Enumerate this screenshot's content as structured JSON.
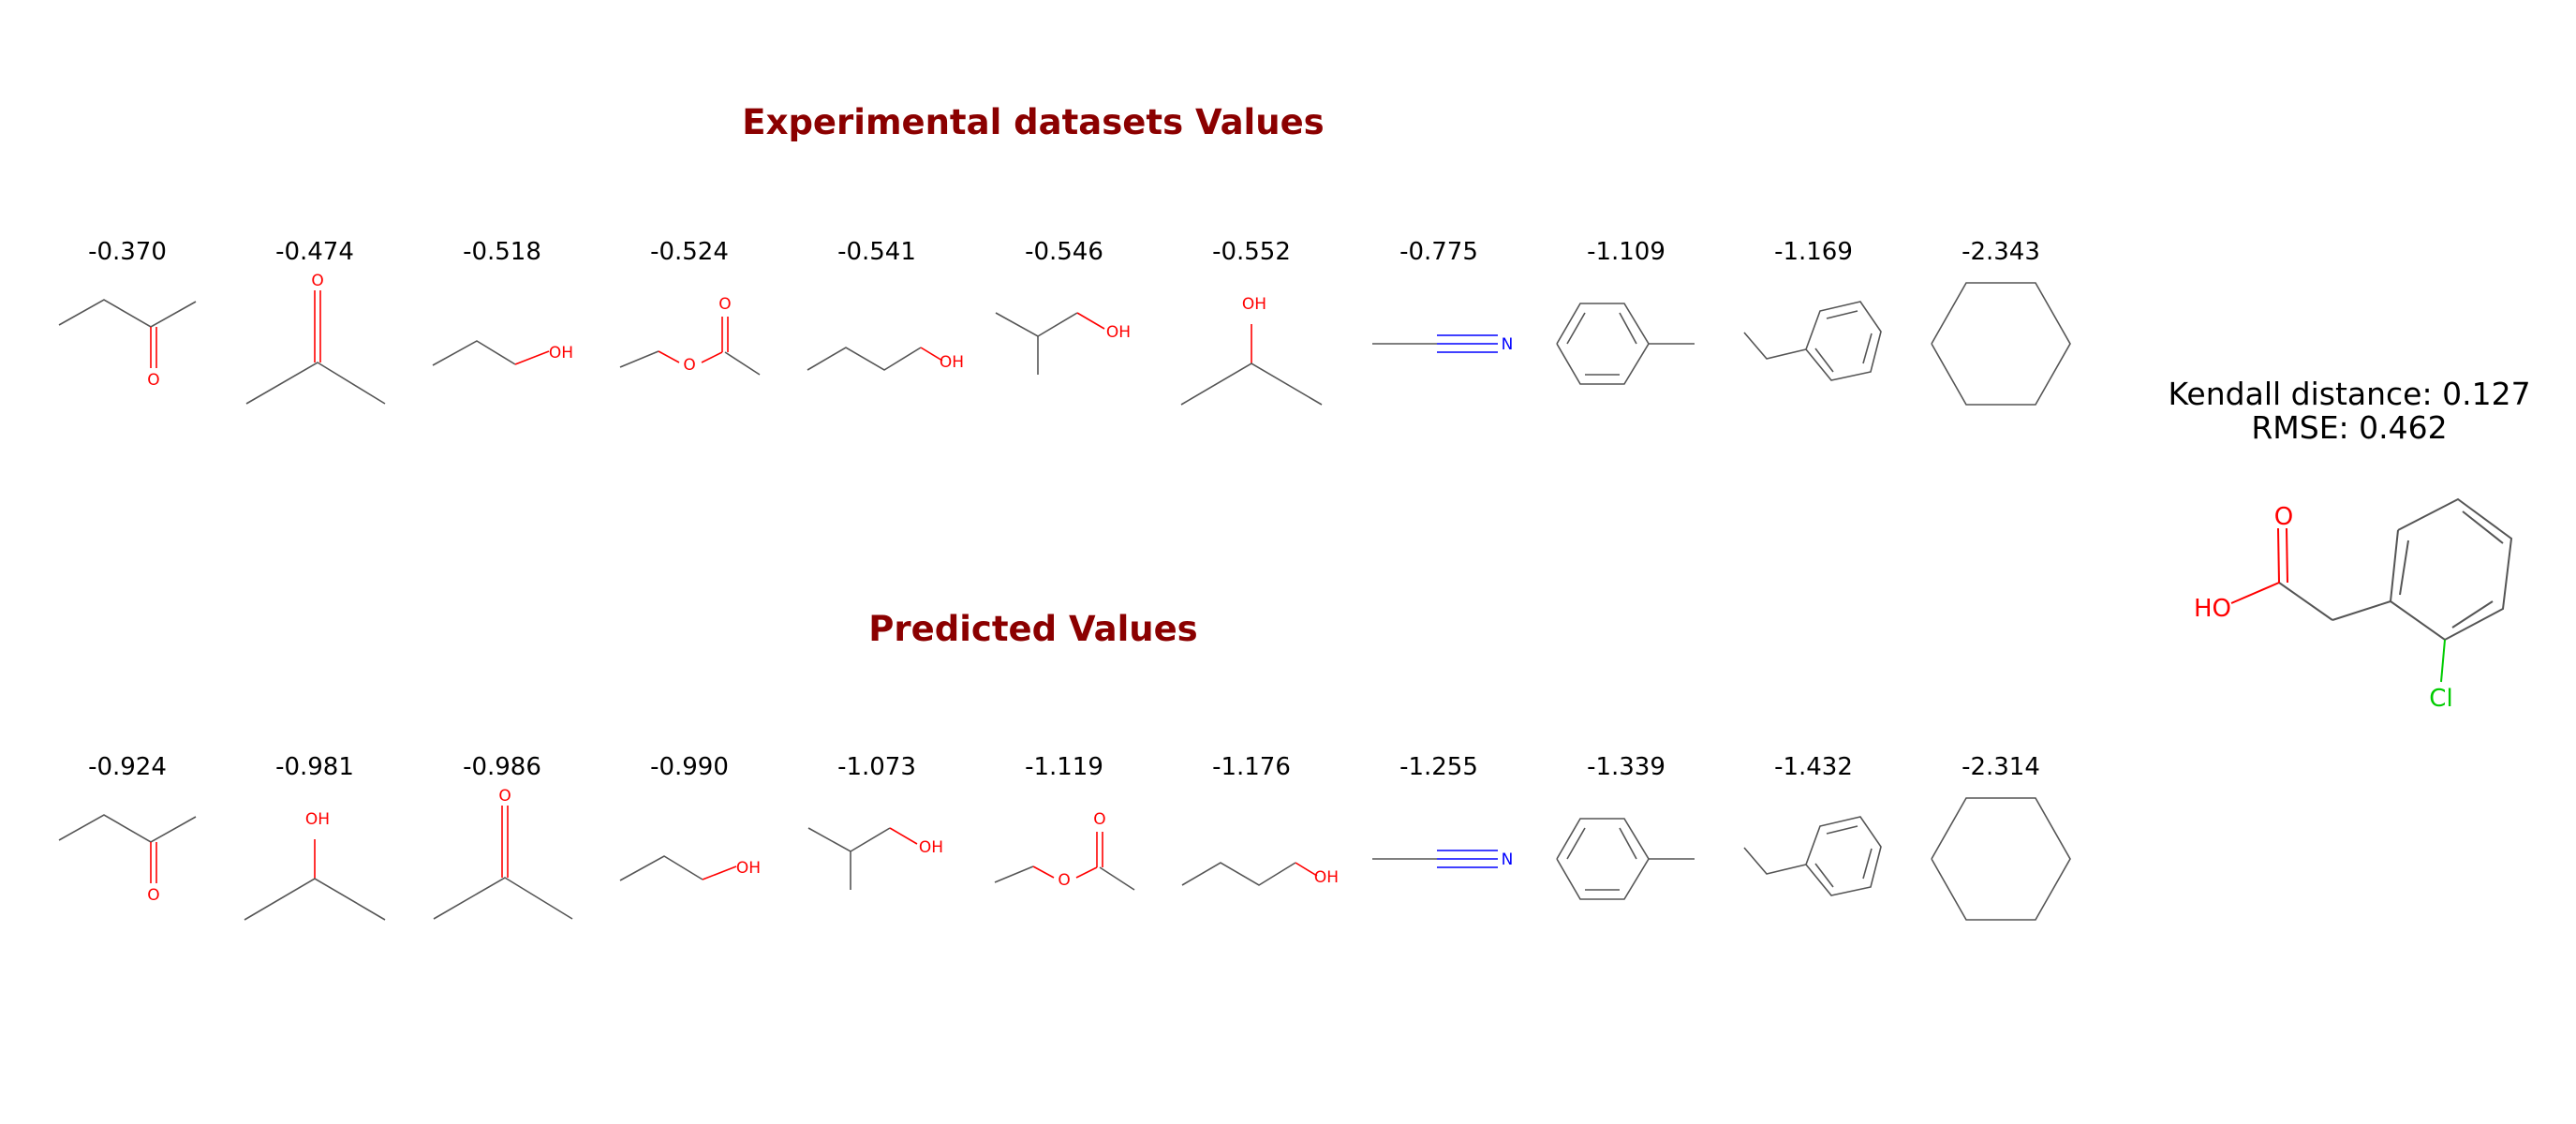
{
  "experimental": {
    "title": "Experimental datasets Values",
    "items": [
      {
        "value": "-0.370",
        "molecule": "butanone"
      },
      {
        "value": "-0.474",
        "molecule": "acetone"
      },
      {
        "value": "-0.518",
        "molecule": "propanol"
      },
      {
        "value": "-0.524",
        "molecule": "ethyl-acetate"
      },
      {
        "value": "-0.541",
        "molecule": "butanol"
      },
      {
        "value": "-0.546",
        "molecule": "isobutanol"
      },
      {
        "value": "-0.552",
        "molecule": "isopropanol"
      },
      {
        "value": "-0.775",
        "molecule": "acetonitrile"
      },
      {
        "value": "-1.109",
        "molecule": "toluene"
      },
      {
        "value": "-1.169",
        "molecule": "ethylbenzene"
      },
      {
        "value": "-2.343",
        "molecule": "cyclohexane"
      }
    ]
  },
  "predicted": {
    "title": "Predicted Values",
    "items": [
      {
        "value": "-0.924",
        "molecule": "butanone"
      },
      {
        "value": "-0.981",
        "molecule": "isopropanol"
      },
      {
        "value": "-0.986",
        "molecule": "acetone"
      },
      {
        "value": "-0.990",
        "molecule": "propanol"
      },
      {
        "value": "-1.073",
        "molecule": "isobutanol"
      },
      {
        "value": "-1.119",
        "molecule": "ethyl-acetate"
      },
      {
        "value": "-1.176",
        "molecule": "butanol"
      },
      {
        "value": "-1.255",
        "molecule": "acetonitrile"
      },
      {
        "value": "-1.339",
        "molecule": "toluene"
      },
      {
        "value": "-1.432",
        "molecule": "ethylbenzene"
      },
      {
        "value": "-2.314",
        "molecule": "cyclohexane"
      }
    ]
  },
  "metrics": {
    "kendall": "Kendall distance: 0.127",
    "rmse": "RMSE: 0.462"
  },
  "solute": {
    "molecule": "2-chlorophenylacetic-acid",
    "labels": {
      "o": "O",
      "oh": "HO",
      "cl": "Cl"
    }
  },
  "atom_labels": {
    "o": "O",
    "oh": "OH",
    "n": "N"
  },
  "colors": {
    "title": "#8b0000",
    "oxygen": "#ff0000",
    "nitrogen": "#0000ff",
    "chlorine": "#00cc00",
    "bond": "#555555"
  }
}
